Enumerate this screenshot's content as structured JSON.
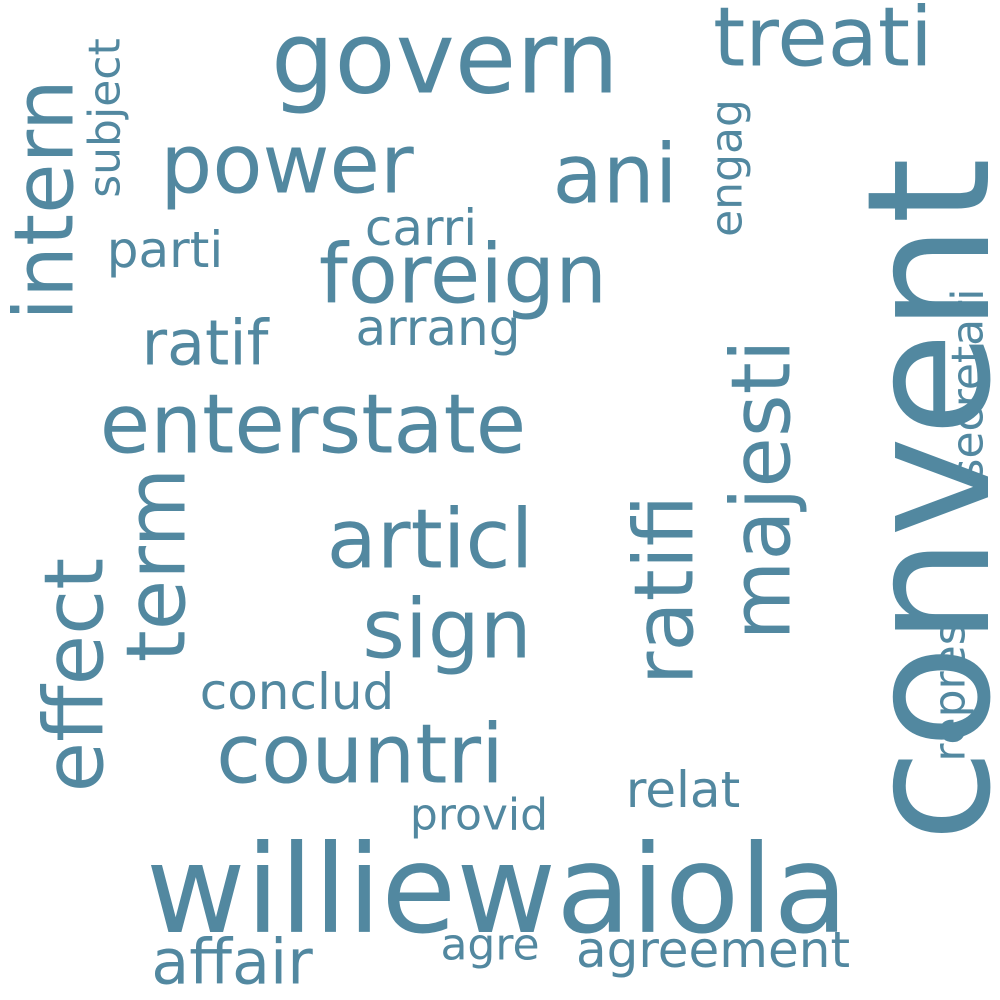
{
  "color": "#5288A0",
  "words": [
    {
      "text": "convent"
    },
    {
      "text": "williewaiola"
    },
    {
      "text": "govern"
    },
    {
      "text": "treati"
    },
    {
      "text": "enterstate"
    },
    {
      "text": "articl"
    },
    {
      "text": "countri"
    },
    {
      "text": "foreign"
    },
    {
      "text": "power"
    },
    {
      "text": "majesti"
    },
    {
      "text": "ani"
    },
    {
      "text": "intern"
    },
    {
      "text": "effect"
    },
    {
      "text": "ratifi"
    },
    {
      "text": "sign"
    },
    {
      "text": "term"
    },
    {
      "text": "affair"
    },
    {
      "text": "ratif"
    },
    {
      "text": "agreement"
    },
    {
      "text": "relat"
    },
    {
      "text": "conclud"
    },
    {
      "text": "provid"
    },
    {
      "text": "arrang"
    },
    {
      "text": "carri"
    },
    {
      "text": "parti"
    },
    {
      "text": "subject"
    },
    {
      "text": "engag"
    },
    {
      "text": "secretari"
    },
    {
      "text": "repres"
    },
    {
      "text": "agre"
    }
  ]
}
